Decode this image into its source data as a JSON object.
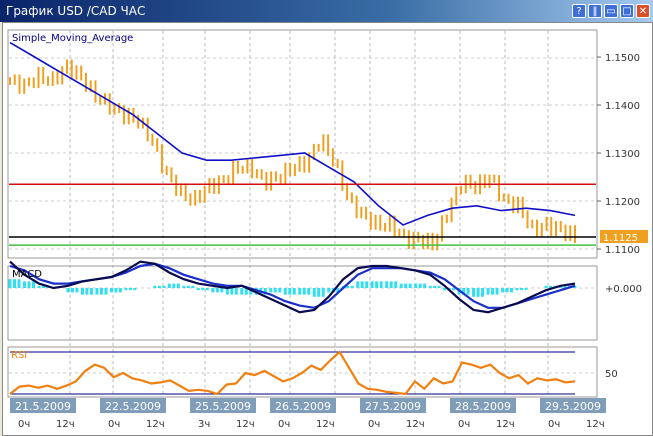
{
  "window": {
    "title": "График USD /CAD  ЧАС",
    "buttons": [
      "help",
      "tile",
      "minimize",
      "restore",
      "close"
    ]
  },
  "main_panel": {
    "indicator_label": "Simple_Moving_Average",
    "price_axis": [
      "1.1500",
      "1.1400",
      "1.1300",
      "1.1200",
      "1.1100"
    ],
    "current_price": "1.1125",
    "lines": {
      "red": 1.1235,
      "black": 1.1125,
      "green": 1.1108
    },
    "colors": {
      "candles": "#f0a020",
      "sma": "#1010c8",
      "red": "#d01010",
      "black": "#000000",
      "green": "#40c040",
      "price_badge": "#f0a020"
    },
    "price": [
      1.145,
      1.144,
      1.146,
      1.145,
      1.148,
      1.146,
      1.142,
      1.14,
      1.138,
      1.137,
      1.133,
      1.126,
      1.122,
      1.12,
      1.123,
      1.124,
      1.127,
      1.127,
      1.124,
      1.125,
      1.127,
      1.128,
      1.133,
      1.128,
      1.12,
      1.117,
      1.115,
      1.115,
      1.112,
      1.112,
      1.111,
      1.118,
      1.124,
      1.123,
      1.125,
      1.12,
      1.119,
      1.114,
      1.115,
      1.114,
      1.1125
    ],
    "sma": [
      1.153,
      1.15,
      1.147,
      1.144,
      1.141,
      1.138,
      1.134,
      1.13,
      1.1285,
      1.1285,
      1.129,
      1.1295,
      1.13,
      1.127,
      1.124,
      1.119,
      1.115,
      1.117,
      1.1185,
      1.119,
      1.118,
      1.1185,
      1.118,
      1.117
    ]
  },
  "macd_panel": {
    "label": "MACD",
    "axis": "+0.000",
    "histogram": [
      -4,
      -3,
      -1,
      0,
      2,
      3,
      3,
      2,
      1,
      0,
      -1,
      -2,
      -1,
      1,
      2,
      3,
      3,
      3,
      2,
      3,
      3,
      4,
      2,
      -1,
      -3,
      -3,
      -3,
      -2,
      -2,
      -1,
      1,
      3,
      4,
      3,
      2,
      1,
      0,
      -1,
      -1,
      -1
    ],
    "main": [
      -12,
      -6,
      -2,
      0,
      -1,
      -3,
      -4,
      -5,
      -8,
      -12,
      -11,
      -7,
      -4,
      -2,
      -1,
      0,
      -1,
      2,
      5,
      8,
      11,
      10,
      4,
      -4,
      -9,
      -10,
      -10,
      -9,
      -8,
      -6,
      -1,
      5,
      10,
      11,
      9,
      7,
      4,
      1,
      -1,
      -2
    ],
    "signal": [
      -10,
      -8,
      -4,
      -2,
      -2,
      -3,
      -4,
      -5,
      -7,
      -10,
      -11,
      -9,
      -6,
      -4,
      -2,
      -1,
      -1,
      1,
      3,
      6,
      8,
      9,
      6,
      0,
      -6,
      -9,
      -9,
      -9,
      -8,
      -7,
      -4,
      1,
      6,
      9,
      9,
      7,
      5,
      3,
      1,
      -1
    ]
  },
  "rsi_panel": {
    "label": "RSI",
    "axis": "50",
    "levels": [
      70,
      30
    ],
    "values": [
      30,
      37,
      38,
      36,
      38,
      35,
      38,
      42,
      52,
      58,
      55,
      46,
      50,
      45,
      43,
      40,
      41,
      43,
      38,
      33,
      34,
      33,
      30,
      39,
      40,
      50,
      48,
      52,
      47,
      42,
      45,
      50,
      57,
      53,
      62,
      70,
      55,
      40,
      35,
      34,
      32,
      31,
      30,
      42,
      35,
      45,
      40,
      42,
      60,
      58,
      55,
      58,
      50,
      45,
      48,
      40,
      45,
      43,
      44,
      41,
      42
    ],
    "colors": {
      "line": "#f08010",
      "oversold": "#20e020",
      "levels": "#000080"
    }
  },
  "time_axis": {
    "dates": [
      "21.5.2009",
      "22.5.2009",
      "25.5.2009",
      "26.5.2009",
      "27.5.2009",
      "28.5.2009",
      "29.5.2009"
    ],
    "hours": [
      "0ч",
      "12ч",
      "0ч",
      "12ч",
      "3ч",
      "12ч",
      "0ч",
      "12ч",
      "0ч",
      "12ч",
      "0ч",
      "12ч",
      "0ч",
      "12ч"
    ]
  }
}
